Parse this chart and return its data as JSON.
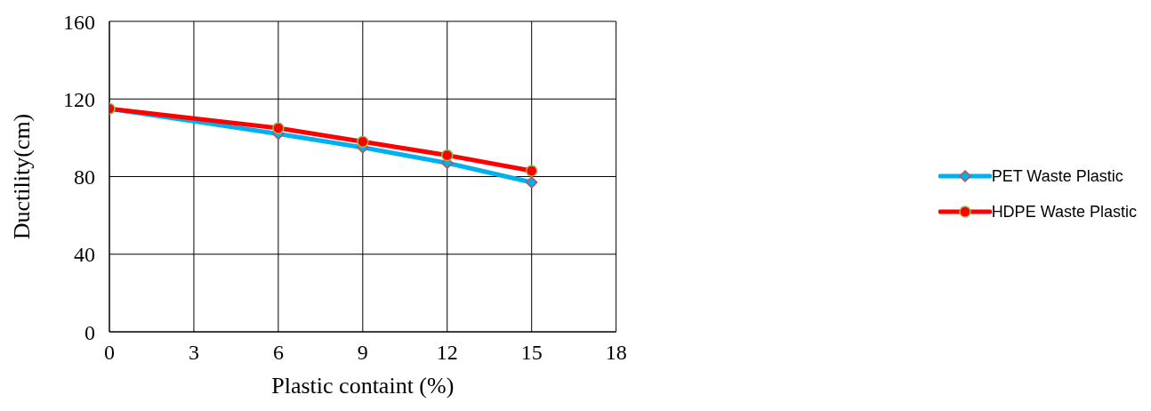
{
  "chart_data": {
    "type": "line",
    "xlabel": "Plastic containt (%)",
    "ylabel": "Ductility(cm)",
    "x": [
      0,
      6,
      9,
      12,
      15
    ],
    "xlim": [
      0,
      18
    ],
    "xticks": [
      0,
      3,
      6,
      9,
      12,
      15,
      18
    ],
    "ylim": [
      0,
      160
    ],
    "yticks": [
      0,
      40,
      80,
      120,
      160
    ],
    "grid": true,
    "legend": "right",
    "line_style": "solid",
    "series": [
      {
        "name": "PET Waste Plastic",
        "color": "#00b0f0",
        "marker": "diamond",
        "values": [
          115,
          102,
          95,
          87,
          77
        ]
      },
      {
        "name": "HDPE Waste Plastic",
        "color": "#ff0000",
        "marker": "circle",
        "values": [
          115,
          105,
          98,
          91,
          83
        ]
      }
    ]
  }
}
